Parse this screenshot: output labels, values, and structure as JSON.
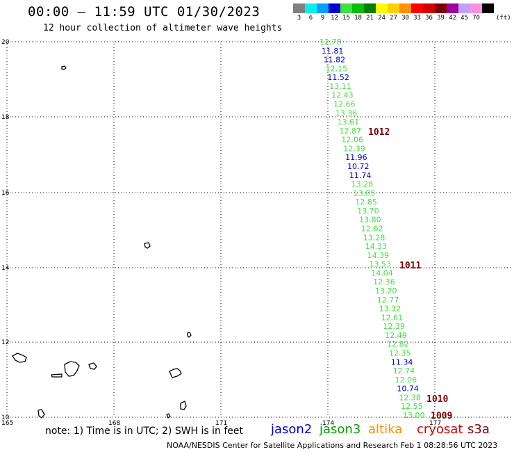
{
  "header": {
    "title": "00:00 – 11:59 UTC 01/30/2023",
    "subtitle": "12 hour collection of altimeter wave heights"
  },
  "color_scale": {
    "unit": "(ft)",
    "bins": [
      {
        "label": "3",
        "color": "#808080"
      },
      {
        "label": "6",
        "color": "#00f0f0"
      },
      {
        "label": "9",
        "color": "#00a0ff"
      },
      {
        "label": "12",
        "color": "#0000d0"
      },
      {
        "label": "15",
        "color": "#40e040"
      },
      {
        "label": "18",
        "color": "#00c000"
      },
      {
        "label": "21",
        "color": "#008000"
      },
      {
        "label": "24",
        "color": "#ffff00"
      },
      {
        "label": "27",
        "color": "#ffd000"
      },
      {
        "label": "30",
        "color": "#ff9000"
      },
      {
        "label": "33",
        "color": "#ff0000"
      },
      {
        "label": "36",
        "color": "#d00000"
      },
      {
        "label": "39",
        "color": "#800000"
      },
      {
        "label": "42",
        "color": "#a000a0"
      },
      {
        "label": "45",
        "color": "#c0a0ff"
      },
      {
        "label": "70",
        "color": "#ff90e0"
      },
      {
        "label": "",
        "color": "#000000"
      }
    ]
  },
  "map": {
    "lat_labels": [
      "20",
      "18",
      "16",
      "14",
      "12",
      "10"
    ],
    "lon_labels": [
      "165",
      "168",
      "171",
      "174",
      "177"
    ]
  },
  "observations": [
    {
      "v": "12.78",
      "c": "#40e040"
    },
    {
      "v": "11.81",
      "c": "#0000d0"
    },
    {
      "v": "11.82",
      "c": "#0000d0"
    },
    {
      "v": "12.15",
      "c": "#40e040"
    },
    {
      "v": "11.52",
      "c": "#0000d0"
    },
    {
      "v": "13.11",
      "c": "#40e040"
    },
    {
      "v": "12.43",
      "c": "#40e040"
    },
    {
      "v": "12.66",
      "c": "#40e040"
    },
    {
      "v": "13.36",
      "c": "#40e040"
    },
    {
      "v": "13.61",
      "c": "#40e040"
    },
    {
      "v": "12.87",
      "c": "#40e040"
    },
    {
      "v": "12.06",
      "c": "#40e040"
    },
    {
      "v": "12.39",
      "c": "#40e040"
    },
    {
      "v": "11.96",
      "c": "#0000d0"
    },
    {
      "v": "10.72",
      "c": "#0000d0"
    },
    {
      "v": "11.74",
      "c": "#0000d0"
    },
    {
      "v": "13.28",
      "c": "#40e040"
    },
    {
      "v": "13.05",
      "c": "#40e040"
    },
    {
      "v": "12.85",
      "c": "#40e040"
    },
    {
      "v": "13.70",
      "c": "#40e040"
    },
    {
      "v": "13.80",
      "c": "#40e040"
    },
    {
      "v": "12.62",
      "c": "#40e040"
    },
    {
      "v": "13.28",
      "c": "#40e040"
    },
    {
      "v": "14.33",
      "c": "#40e040"
    },
    {
      "v": "14.39",
      "c": "#40e040"
    },
    {
      "v": "13.53",
      "c": "#40e040"
    },
    {
      "v": "14.04",
      "c": "#40e040"
    },
    {
      "v": "12.36",
      "c": "#40e040"
    },
    {
      "v": "13.20",
      "c": "#40e040"
    },
    {
      "v": "12.77",
      "c": "#40e040"
    },
    {
      "v": "13.32",
      "c": "#40e040"
    },
    {
      "v": "12.61",
      "c": "#40e040"
    },
    {
      "v": "12.39",
      "c": "#40e040"
    },
    {
      "v": "12.49",
      "c": "#40e040"
    },
    {
      "v": "12.82",
      "c": "#40e040"
    },
    {
      "v": "12.35",
      "c": "#40e040"
    },
    {
      "v": "11.34",
      "c": "#0000d0"
    },
    {
      "v": "12.74",
      "c": "#40e040"
    },
    {
      "v": "12.06",
      "c": "#40e040"
    },
    {
      "v": "10.74",
      "c": "#0000d0"
    },
    {
      "v": "12.38",
      "c": "#40e040"
    },
    {
      "v": "12.55",
      "c": "#40e040"
    },
    {
      "v": "13.00",
      "c": "#40e040"
    }
  ],
  "pressure_labels": [
    "1012",
    "1011",
    "1010",
    "1009"
  ],
  "footer": {
    "note": "note:  1) Time is in UTC;  2) SWH is in feet",
    "satellites": [
      {
        "name": "jason2",
        "color": "#0000d0"
      },
      {
        "name": "jason3",
        "color": "#00a000"
      },
      {
        "name": "altika",
        "color": "#ff9000"
      },
      {
        "name": "cryosat",
        "color": "#d00000"
      },
      {
        "name": "s3a",
        "color": "#800000"
      }
    ],
    "credit": "NOAA/NESDIS Center for Satellite Applications and Research    Feb  1 08:28:56 UTC 2023"
  }
}
